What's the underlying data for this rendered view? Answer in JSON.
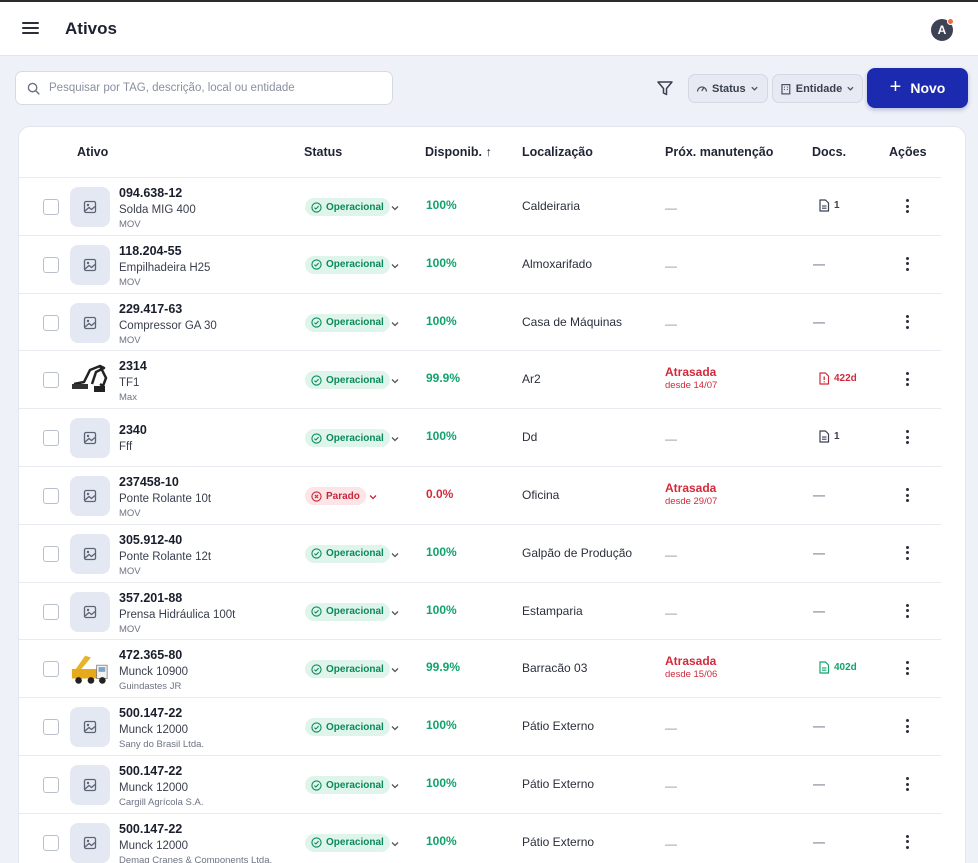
{
  "header": {
    "title": "Ativos",
    "avatar_initial": "A"
  },
  "toolbar": {
    "search_placeholder": "Pesquisar por TAG, descrição, local ou entidade",
    "status_filter_label": "Status",
    "entity_filter_label": "Entidade",
    "new_button_label": "Novo"
  },
  "table": {
    "columns": [
      "Ativo",
      "Status",
      "Disponib.",
      "Localização",
      "Próx. manutenção",
      "Docs.",
      "Ações"
    ],
    "sort_indicator": "↑",
    "rows": [
      {
        "tag": "094.638-12",
        "description": "Solda MIG 400",
        "entity": "MOV",
        "thumb": "placeholder",
        "status": "Operacional",
        "status_kind": "op",
        "availability": "100%",
        "availability_kind": "good",
        "location": "Caldeiraria",
        "maintenance": "—",
        "maintenance_late": false,
        "maintenance_since": "",
        "docs": "1",
        "docs_kind": "file"
      },
      {
        "tag": "118.204-55",
        "description": "Empilhadeira H25",
        "entity": "MOV",
        "thumb": "placeholder",
        "status": "Operacional",
        "status_kind": "op",
        "availability": "100%",
        "availability_kind": "good",
        "location": "Almoxarifado",
        "maintenance": "—",
        "maintenance_late": false,
        "maintenance_since": "",
        "docs": "—",
        "docs_kind": "none"
      },
      {
        "tag": "229.417-63",
        "description": "Compressor GA 30",
        "entity": "MOV",
        "thumb": "placeholder",
        "status": "Operacional",
        "status_kind": "op",
        "availability": "100%",
        "availability_kind": "good",
        "location": "Casa de Máquinas",
        "maintenance": "—",
        "maintenance_late": false,
        "maintenance_since": "",
        "docs": "—",
        "docs_kind": "none"
      },
      {
        "tag": "2314",
        "description": "TF1",
        "entity": "Max",
        "thumb": "excavator",
        "status": "Operacional",
        "status_kind": "op",
        "availability": "99.9%",
        "availability_kind": "good",
        "location": "Ar2",
        "maintenance": "Atrasada",
        "maintenance_late": true,
        "maintenance_since": "desde 14/07",
        "docs": "422d",
        "docs_kind": "alert"
      },
      {
        "tag": "2340",
        "description": "Fff",
        "entity": "",
        "thumb": "placeholder",
        "status": "Operacional",
        "status_kind": "op",
        "availability": "100%",
        "availability_kind": "good",
        "location": "Dd",
        "maintenance": "—",
        "maintenance_late": false,
        "maintenance_since": "",
        "docs": "1",
        "docs_kind": "file"
      },
      {
        "tag": "237458-10",
        "description": "Ponte Rolante 10t",
        "entity": "MOV",
        "thumb": "placeholder",
        "status": "Parado",
        "status_kind": "stop",
        "availability": "0.0%",
        "availability_kind": "bad",
        "location": "Oficina",
        "maintenance": "Atrasada",
        "maintenance_late": true,
        "maintenance_since": "desde 29/07",
        "docs": "—",
        "docs_kind": "none"
      },
      {
        "tag": "305.912-40",
        "description": "Ponte Rolante 12t",
        "entity": "MOV",
        "thumb": "placeholder",
        "status": "Operacional",
        "status_kind": "op",
        "availability": "100%",
        "availability_kind": "good",
        "location": "Galpão de Produção",
        "maintenance": "—",
        "maintenance_late": false,
        "maintenance_since": "",
        "docs": "—",
        "docs_kind": "none"
      },
      {
        "tag": "357.201-88",
        "description": "Prensa Hidráulica 100t",
        "entity": "MOV",
        "thumb": "placeholder",
        "status": "Operacional",
        "status_kind": "op",
        "availability": "100%",
        "availability_kind": "good",
        "location": "Estamparia",
        "maintenance": "—",
        "maintenance_late": false,
        "maintenance_since": "",
        "docs": "—",
        "docs_kind": "none"
      },
      {
        "tag": "472.365-80",
        "description": "Munck 10900",
        "entity": "Guindastes JR",
        "thumb": "truck",
        "status": "Operacional",
        "status_kind": "op",
        "availability": "99.9%",
        "availability_kind": "good",
        "location": "Barracão 03",
        "maintenance": "Atrasada",
        "maintenance_late": true,
        "maintenance_since": "desde 15/06",
        "docs": "402d",
        "docs_kind": "ok"
      },
      {
        "tag": "500.147-22",
        "description": "Munck 12000",
        "entity": "Sany do Brasil Ltda.",
        "thumb": "placeholder",
        "status": "Operacional",
        "status_kind": "op",
        "availability": "100%",
        "availability_kind": "good",
        "location": "Pátio Externo",
        "maintenance": "—",
        "maintenance_late": false,
        "maintenance_since": "",
        "docs": "—",
        "docs_kind": "none"
      },
      {
        "tag": "500.147-22",
        "description": "Munck 12000",
        "entity": "Cargill Agrícola S.A.",
        "thumb": "placeholder",
        "status": "Operacional",
        "status_kind": "op",
        "availability": "100%",
        "availability_kind": "good",
        "location": "Pátio Externo",
        "maintenance": "—",
        "maintenance_late": false,
        "maintenance_since": "",
        "docs": "—",
        "docs_kind": "none"
      },
      {
        "tag": "500.147-22",
        "description": "Munck 12000",
        "entity": "Demag Cranes & Components Ltda.",
        "thumb": "placeholder",
        "status": "Operacional",
        "status_kind": "op",
        "availability": "100%",
        "availability_kind": "good",
        "location": "Pátio Externo",
        "maintenance": "—",
        "maintenance_late": false,
        "maintenance_since": "",
        "docs": "—",
        "docs_kind": "none"
      }
    ]
  },
  "colors": {
    "primary": "#1c2ab0",
    "success": "#11a36b",
    "danger": "#d12a3b",
    "background": "#eef1f7"
  },
  "icons": {
    "menu": "hamburger-icon",
    "search": "search-icon",
    "filter": "funnel-icon",
    "status_chip": "gauge-icon",
    "entity_chip": "building-icon",
    "chevron": "chevron-down-icon",
    "image_placeholder": "image-icon",
    "status_ok": "check-circle-icon",
    "status_stop": "x-circle-icon",
    "doc": "document-icon",
    "doc_alert": "alert-document-icon",
    "actions": "kebab-icon"
  }
}
